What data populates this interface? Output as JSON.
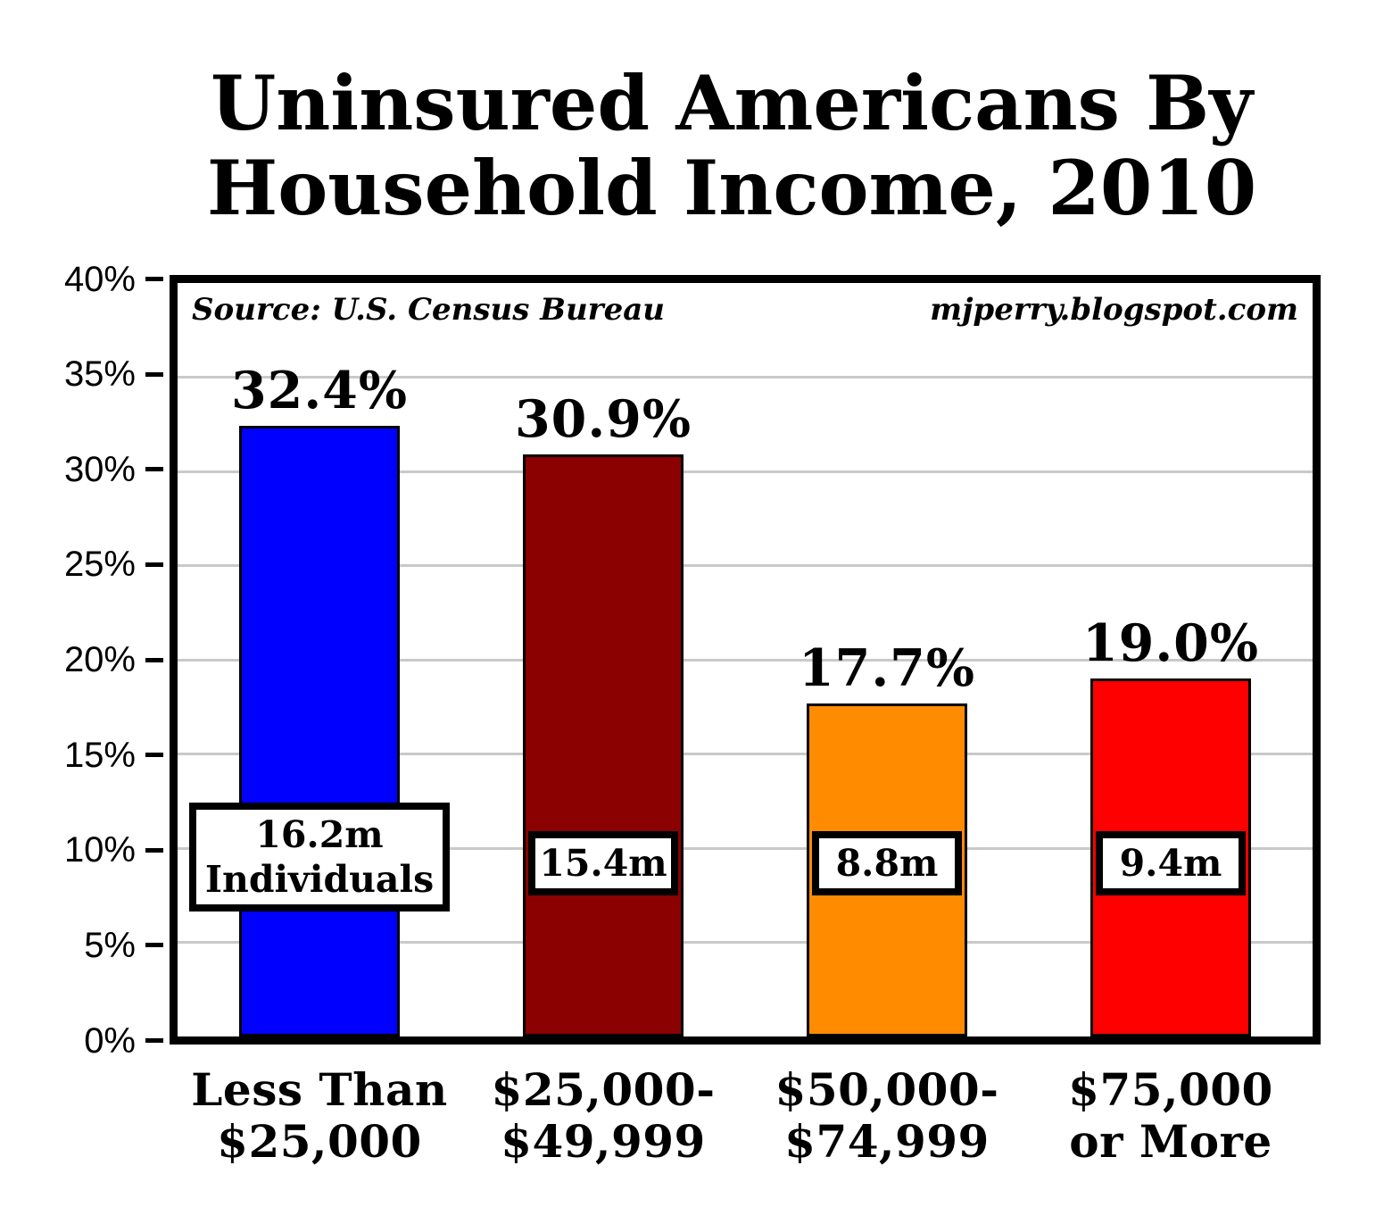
{
  "header": {
    "title_line1": "Uninsured Americans By",
    "title_line2": "Household Income, 2010"
  },
  "chart_data": {
    "type": "bar",
    "title": "Uninsured Americans By Household Income, 2010",
    "source_note": "Source: U.S. Census Bureau",
    "watermark": "mjperry.blogspot.com",
    "categories": [
      "Less Than\n$25,000",
      "$25,000-\n$49,999",
      "$50,000-\n$74,999",
      "$75,000\nor More"
    ],
    "values": [
      32.4,
      30.9,
      17.7,
      19.0
    ],
    "bar_value_labels": [
      "32.4%",
      "30.9%",
      "17.7%",
      "19.0%"
    ],
    "bar_count_labels": [
      "16.2m\nIndividuals",
      "15.4m",
      "8.8m",
      "9.4m"
    ],
    "bar_colors": [
      "#0000fe",
      "#8b0000",
      "#ff8c00",
      "#ff0000"
    ],
    "xlabel": "",
    "ylabel": "",
    "ylim": [
      0,
      40
    ],
    "y_tick_values": [
      0,
      5,
      10,
      15,
      20,
      25,
      30,
      35,
      40
    ],
    "y_tick_labels": [
      "0%",
      "5%",
      "10%",
      "15%",
      "20%",
      "25%",
      "30%",
      "35%",
      "40%"
    ],
    "gridlines": {
      "horizontal_at": [
        5,
        10,
        15,
        20,
        25,
        30,
        35
      ],
      "color": "#c9c9c9"
    },
    "legend": "none",
    "axis_color": "#000000",
    "background": "#ffffff"
  }
}
